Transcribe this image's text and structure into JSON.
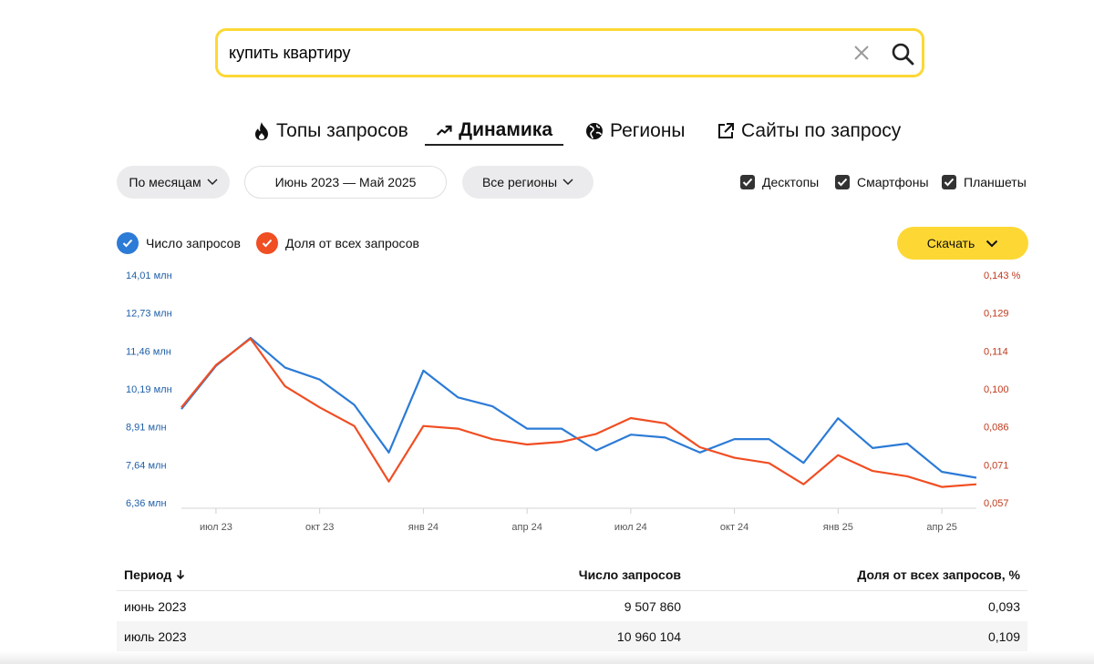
{
  "search": {
    "value": "купить квартиру"
  },
  "tabs": [
    {
      "label": "Топы запросов",
      "icon": "fire-icon"
    },
    {
      "label": "Динамика",
      "icon": "trend-up-icon"
    },
    {
      "label": "Регионы",
      "icon": "globe-icon"
    },
    {
      "label": "Сайты по запросу",
      "icon": "external-link-icon"
    }
  ],
  "filters": {
    "period_label": "По месяцам",
    "date_range": "Июнь 2023 — Май 2025",
    "region_label": "Все регионы",
    "devices": [
      {
        "label": "Десктопы",
        "checked": true
      },
      {
        "label": "Смартфоны",
        "checked": true
      },
      {
        "label": "Планшеты",
        "checked": true
      }
    ]
  },
  "legend": [
    {
      "label": "Число запросов",
      "color": "#2c7bd6"
    },
    {
      "label": "Доля от всех запросов",
      "color": "#f04e23"
    }
  ],
  "download_label": "Скачать",
  "colors": {
    "accent_yellow": "#fdd835",
    "count_series": "#2c7bd6",
    "share_series": "#f04e23"
  },
  "chart_data": {
    "type": "line",
    "x": [
      "июнь 2023",
      "июль 2023",
      "авг 2023",
      "сен 2023",
      "окт 2023",
      "ноя 2023",
      "дек 2023",
      "янв 2024",
      "фев 2024",
      "мар 2024",
      "апр 2024",
      "май 2024",
      "июн 2024",
      "июл 2024",
      "авг 2024",
      "сен 2024",
      "окт 2024",
      "ноя 2024",
      "дек 2024",
      "янв 2025",
      "фев 2025",
      "мар 2025",
      "апр 2025",
      "май 2025"
    ],
    "x_ticks": [
      "июл 23",
      "окт 23",
      "янв 24",
      "апр 24",
      "июл 24",
      "окт 24",
      "янв 25",
      "апр 25"
    ],
    "y_left_ticks": [
      "14,01 млн",
      "12,73 млн",
      "11,46 млн",
      "10,19 млн",
      "8,91 млн",
      "7,64 млн",
      "6,36 млн"
    ],
    "y_right_ticks": [
      "0,143 %",
      "0,129",
      "0,114",
      "0,100",
      "0,086",
      "0,071",
      "0,057"
    ],
    "y_left_range": [
      6.36,
      14.01
    ],
    "y_right_range": [
      0.057,
      0.143
    ],
    "series": [
      {
        "name": "Число запросов",
        "axis": "left",
        "unit": "млн",
        "values": [
          9.51,
          10.96,
          11.9,
          10.9,
          10.5,
          9.65,
          8.05,
          10.8,
          9.9,
          9.6,
          8.85,
          8.85,
          8.12,
          8.65,
          8.55,
          8.05,
          8.5,
          8.5,
          7.7,
          9.2,
          8.2,
          8.35,
          7.4,
          7.2
        ]
      },
      {
        "name": "Доля от всех запросов",
        "axis": "right",
        "unit": "%",
        "values": [
          0.093,
          0.109,
          0.119,
          0.101,
          0.093,
          0.086,
          0.065,
          0.086,
          0.085,
          0.081,
          0.079,
          0.08,
          0.083,
          0.089,
          0.087,
          0.078,
          0.074,
          0.072,
          0.064,
          0.075,
          0.069,
          0.067,
          0.063,
          0.064
        ]
      }
    ]
  },
  "table": {
    "headers": {
      "period": "Период",
      "count": "Число запросов",
      "share": "Доля от всех запросов, %"
    },
    "rows": [
      {
        "period": "июнь 2023",
        "count": "9 507 860",
        "share": "0,093"
      },
      {
        "period": "июль 2023",
        "count": "10 960 104",
        "share": "0,109"
      }
    ]
  }
}
